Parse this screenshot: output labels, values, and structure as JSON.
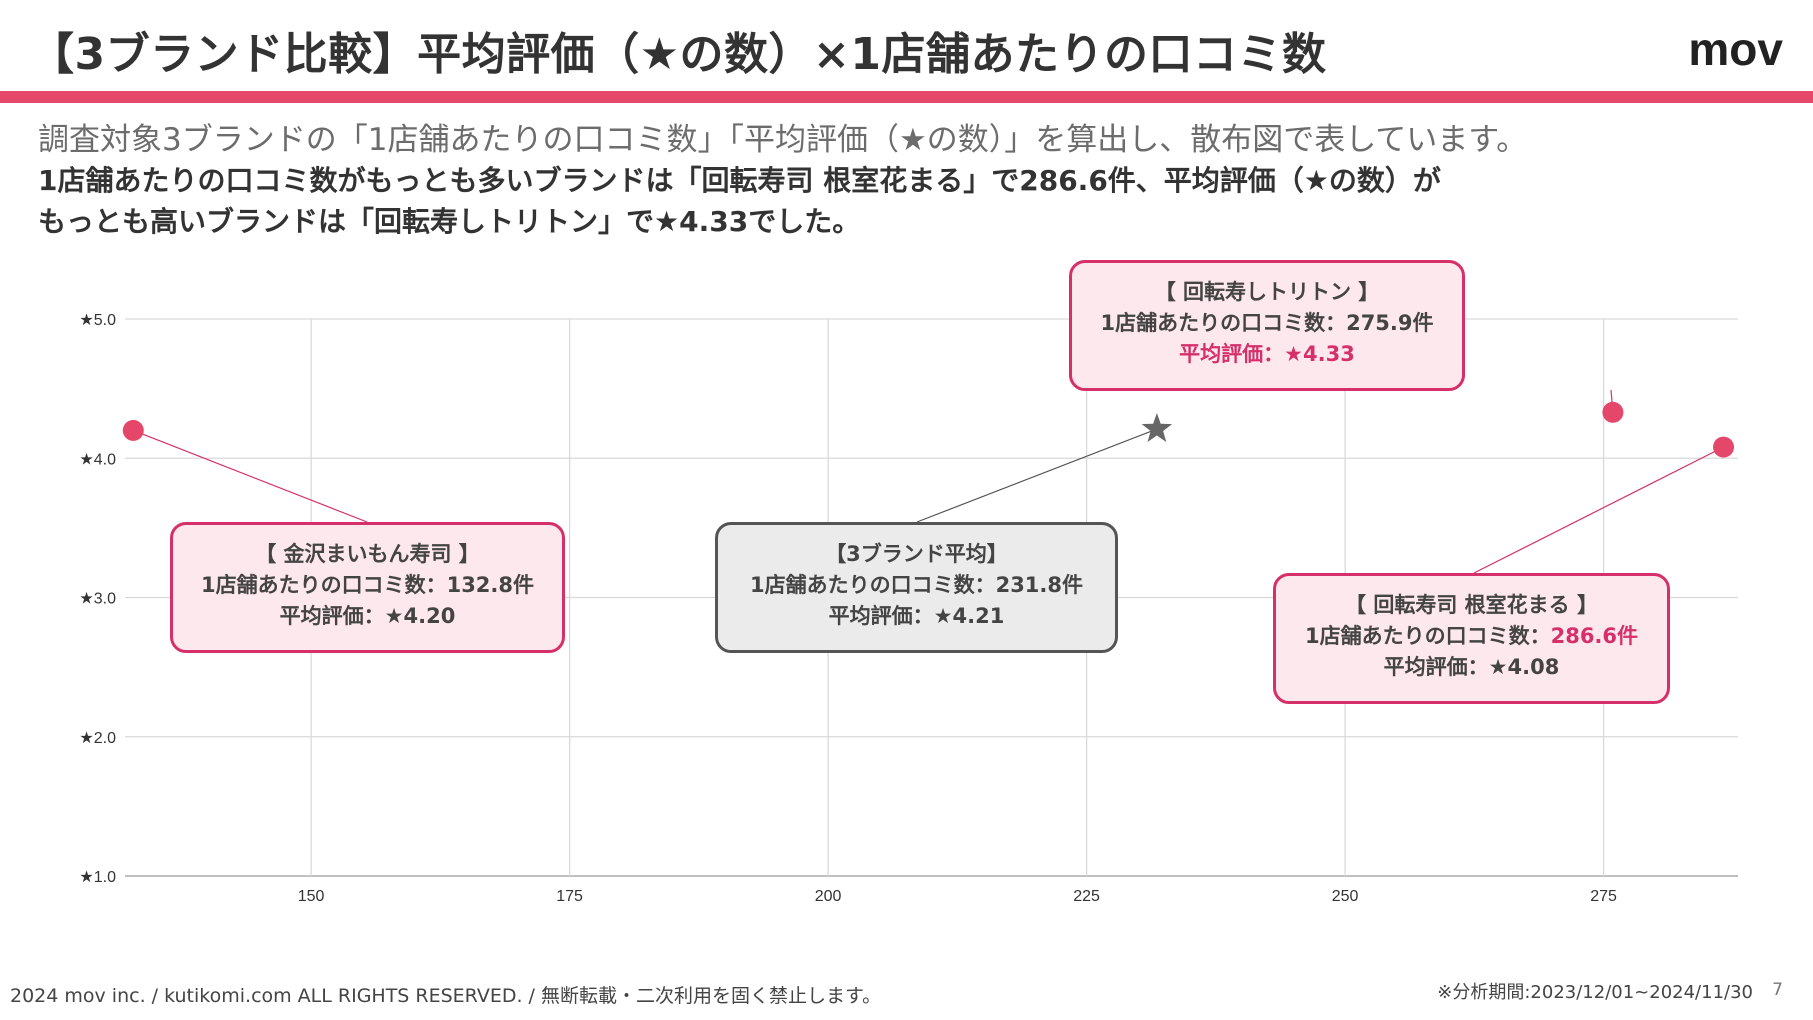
{
  "header": {
    "title": "【3ブランド比較】平均評価（★の数）×1店舗あたりの口コミ数",
    "logo": "mov"
  },
  "lead": {
    "line1": "調査対象3ブランドの「1店舗あたりの口コミ数」「平均評価（★の数）」を算出し、散布図で表しています。",
    "line2": "1店舗あたりの口コミ数がもっとも多いブランドは「回転寿司 根室花まる」で286.6件、平均評価（★の数）が",
    "line3": "もっとも高いブランドは「回転寿しトリトン」で★4.33でした。"
  },
  "chart_data": {
    "type": "scatter",
    "xlim": [
      132,
      288
    ],
    "ylim": [
      1.0,
      5.0
    ],
    "x_ticks": [
      150,
      175,
      200,
      225,
      250,
      275
    ],
    "x_tick_labels": [
      "150",
      "175",
      "200",
      "225",
      "250",
      "275"
    ],
    "y_ticks": [
      1.0,
      2.0,
      3.0,
      4.0,
      5.0
    ],
    "y_tick_labels": [
      "★1.0",
      "★2.0",
      "★3.0",
      "★4.0",
      "★5.0"
    ],
    "grid": true,
    "points": [
      {
        "x": 132.8,
        "y": 4.2,
        "marker": "circle",
        "color": "#e5476b"
      },
      {
        "x": 275.9,
        "y": 4.33,
        "marker": "circle",
        "color": "#e5476b"
      },
      {
        "x": 286.6,
        "y": 4.08,
        "marker": "circle",
        "color": "#e5476b"
      },
      {
        "x": 231.8,
        "y": 4.21,
        "marker": "star",
        "color": "#666666"
      }
    ]
  },
  "callouts": {
    "kanazawa": {
      "name": "【 金沢まいもん寿司 】",
      "reviews": "1店舗あたりの口コミ数：132.8件",
      "rating": "平均評価：★4.20"
    },
    "average": {
      "name": "【3ブランド平均】",
      "reviews": "1店舗あたりの口コミ数：231.8件",
      "rating": "平均評価：★4.21"
    },
    "toriton": {
      "name": "【 回転寿しトリトン 】",
      "reviews": "1店舗あたりの口コミ数：275.9件",
      "rating": "平均評価：★4.33"
    },
    "hanamaru": {
      "name": "【 回転寿司 根室花まる 】",
      "reviews_prefix": "1店舗あたりの口コミ数：",
      "reviews_value": "286.6件",
      "rating": "平均評価：★4.08"
    }
  },
  "colors": {
    "accent": "#e5476b",
    "highlight": "#d6306a",
    "average_marker": "#666666"
  },
  "footer": {
    "copyright": "2024 mov inc. / kutikomi.com ALL RIGHTS RESERVED. / 無断転載・二次利用を固く禁止します。",
    "period": "※分析期間:2023/12/01~2024/11/30",
    "page": "7"
  }
}
